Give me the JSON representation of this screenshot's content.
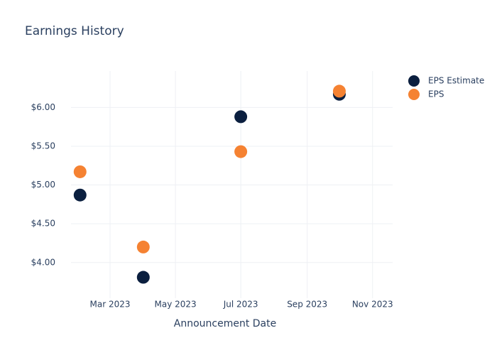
{
  "chart_data": {
    "type": "scatter",
    "title": "Earnings History",
    "x_label": "Announcement Date",
    "x": [
      "2023-02",
      "2023-04",
      "2023-07",
      "2023-10"
    ],
    "series": [
      {
        "name": "EPS Estimate",
        "color": "#0b1f3f",
        "values": [
          4.87,
          3.81,
          5.88,
          6.17
        ]
      },
      {
        "name": "EPS",
        "color": "#f58232",
        "values": [
          5.17,
          4.2,
          5.43,
          6.21
        ]
      }
    ],
    "xlim": [
      "2023-01",
      "2023-12"
    ],
    "xticks": [
      {
        "value": "2023-03",
        "label": "Mar 2023"
      },
      {
        "value": "2023-05",
        "label": "May 2023"
      },
      {
        "value": "2023-07",
        "label": "Jul 2023"
      },
      {
        "value": "2023-09",
        "label": "Sep 2023"
      },
      {
        "value": "2023-11",
        "label": "Nov 2023"
      }
    ],
    "ylim": [
      3.54,
      6.47
    ],
    "yticks": [
      {
        "value": 4,
        "label": "$4.00"
      },
      {
        "value": 4.5,
        "label": "$4.50"
      },
      {
        "value": 5,
        "label": "$5.00"
      },
      {
        "value": 5.5,
        "label": "$5.50"
      },
      {
        "value": 6,
        "label": "$6.00"
      }
    ],
    "grid": true
  }
}
